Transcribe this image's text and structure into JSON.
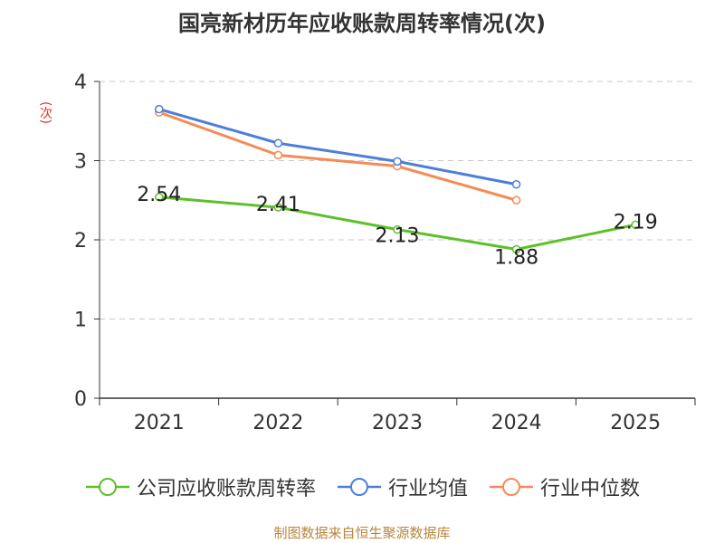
{
  "chart_data": {
    "type": "line",
    "title": "国亮新材历年应收账款周转率情况(次)",
    "xlabel": "",
    "ylabel": "(次)",
    "categories": [
      "2021",
      "2022",
      "2023",
      "2024",
      "2025"
    ],
    "ylim": [
      0,
      4
    ],
    "yticks": [
      0,
      1,
      2,
      3,
      4
    ],
    "grid": true,
    "legend_position": "bottom",
    "series": [
      {
        "name": "公司应收账款周转率",
        "color": "#5cc02a",
        "labeled": true,
        "values": [
          2.54,
          2.41,
          2.13,
          1.88,
          2.19
        ],
        "labels": [
          "2.54",
          "2.41",
          "2.13",
          "1.88",
          "2.19"
        ]
      },
      {
        "name": "行业均值",
        "color": "#4d7fd8",
        "labeled": false,
        "values": [
          3.65,
          3.22,
          2.99,
          2.7,
          null
        ]
      },
      {
        "name": "行业中位数",
        "color": "#f58b55",
        "labeled": false,
        "values": [
          3.61,
          3.07,
          2.93,
          2.5,
          null
        ]
      }
    ]
  },
  "source": "制图数据来自恒生聚源数据库"
}
